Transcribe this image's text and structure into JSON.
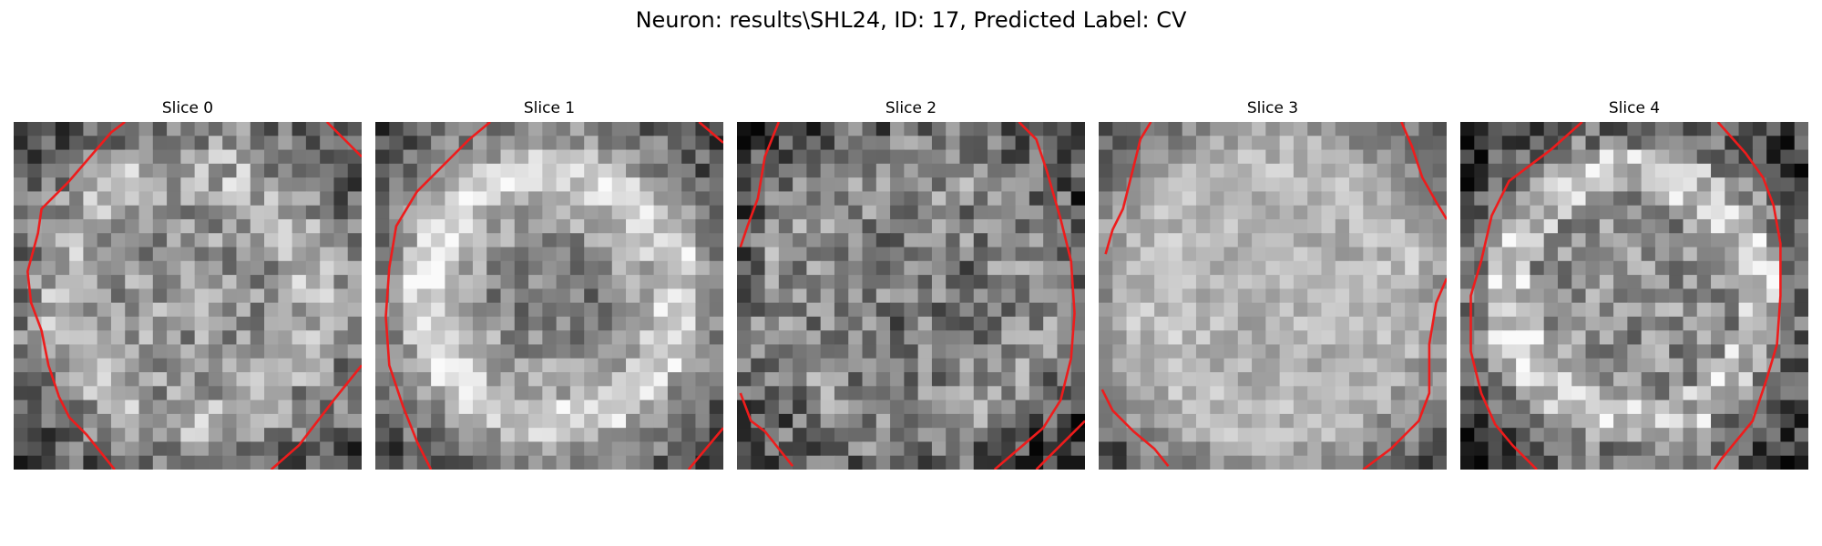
{
  "title": "Neuron: results\\SHL24, ID: 17, Predicted Label: CV",
  "slices": [
    {
      "label": "Slice 0",
      "seed": 11,
      "brightness": 0.58,
      "contrast": 0.22,
      "ring": 0.12,
      "dark_corner": 0.32,
      "center_dark": 0.0
    },
    {
      "label": "Slice 1",
      "seed": 29,
      "brightness": 0.64,
      "contrast": 0.15,
      "ring": 0.26,
      "dark_corner": 0.4,
      "center_dark": 0.18
    },
    {
      "label": "Slice 2",
      "seed": 47,
      "brightness": 0.52,
      "contrast": 0.24,
      "ring": 0.06,
      "dark_corner": 0.36,
      "center_dark": 0.06
    },
    {
      "label": "Slice 3",
      "seed": 71,
      "brightness": 0.7,
      "contrast": 0.13,
      "ring": 0.04,
      "dark_corner": 0.38,
      "center_dark": 0.0
    },
    {
      "label": "Slice 4",
      "seed": 89,
      "brightness": 0.56,
      "contrast": 0.22,
      "ring": 0.28,
      "dark_corner": 0.45,
      "center_dark": 0.0
    }
  ],
  "contours": [
    [
      [
        [
          0.32,
          0.0
        ],
        [
          0.28,
          0.03
        ],
        [
          0.16,
          0.17
        ],
        [
          0.08,
          0.25
        ],
        [
          0.07,
          0.32
        ],
        [
          0.04,
          0.43
        ],
        [
          0.05,
          0.52
        ],
        [
          0.08,
          0.6
        ],
        [
          0.1,
          0.7
        ],
        [
          0.13,
          0.79
        ],
        [
          0.16,
          0.85
        ],
        [
          0.21,
          0.9
        ],
        [
          0.29,
          1.0
        ]
      ],
      [
        [
          0.9,
          0.0
        ],
        [
          1.0,
          0.1
        ]
      ],
      [
        [
          0.74,
          1.0
        ],
        [
          0.82,
          0.93
        ],
        [
          0.92,
          0.8
        ],
        [
          1.0,
          0.7
        ]
      ]
    ],
    [
      [
        [
          0.33,
          0.0
        ],
        [
          0.27,
          0.05
        ],
        [
          0.12,
          0.2
        ],
        [
          0.06,
          0.3
        ],
        [
          0.04,
          0.42
        ],
        [
          0.03,
          0.56
        ],
        [
          0.04,
          0.7
        ],
        [
          0.08,
          0.82
        ],
        [
          0.12,
          0.92
        ],
        [
          0.16,
          1.0
        ]
      ],
      [
        [
          0.93,
          0.0
        ],
        [
          1.0,
          0.06
        ]
      ],
      [
        [
          0.9,
          1.0
        ],
        [
          1.0,
          0.88
        ]
      ]
    ],
    [
      [
        [
          0.12,
          0.0
        ],
        [
          0.08,
          0.1
        ],
        [
          0.06,
          0.22
        ],
        [
          0.03,
          0.3
        ],
        [
          0.01,
          0.36
        ]
      ],
      [
        [
          0.81,
          0.0
        ],
        [
          0.86,
          0.05
        ],
        [
          0.89,
          0.14
        ],
        [
          0.93,
          0.28
        ],
        [
          0.96,
          0.4
        ],
        [
          0.97,
          0.55
        ],
        [
          0.96,
          0.68
        ],
        [
          0.93,
          0.8
        ],
        [
          0.88,
          0.88
        ],
        [
          0.74,
          1.0
        ]
      ],
      [
        [
          0.01,
          0.78
        ],
        [
          0.04,
          0.86
        ],
        [
          0.08,
          0.89
        ],
        [
          0.16,
          0.99
        ]
      ],
      [
        [
          0.86,
          1.0
        ],
        [
          0.96,
          0.9
        ],
        [
          1.0,
          0.86
        ]
      ]
    ],
    [
      [
        [
          0.15,
          0.0
        ],
        [
          0.12,
          0.05
        ],
        [
          0.1,
          0.13
        ],
        [
          0.07,
          0.25
        ],
        [
          0.04,
          0.31
        ],
        [
          0.02,
          0.38
        ]
      ],
      [
        [
          0.87,
          0.0
        ],
        [
          0.9,
          0.07
        ],
        [
          0.93,
          0.16
        ],
        [
          0.97,
          0.23
        ],
        [
          1.0,
          0.28
        ]
      ],
      [
        [
          1.0,
          0.45
        ],
        [
          0.97,
          0.52
        ],
        [
          0.95,
          0.64
        ],
        [
          0.95,
          0.78
        ],
        [
          0.92,
          0.86
        ],
        [
          0.84,
          0.94
        ],
        [
          0.76,
          1.0
        ]
      ],
      [
        [
          0.01,
          0.77
        ],
        [
          0.04,
          0.83
        ],
        [
          0.1,
          0.89
        ],
        [
          0.16,
          0.94
        ],
        [
          0.2,
          0.99
        ]
      ]
    ],
    [
      [
        [
          0.35,
          0.0
        ],
        [
          0.26,
          0.08
        ],
        [
          0.14,
          0.17
        ],
        [
          0.09,
          0.27
        ],
        [
          0.06,
          0.4
        ],
        [
          0.03,
          0.5
        ],
        [
          0.03,
          0.66
        ],
        [
          0.06,
          0.78
        ],
        [
          0.1,
          0.87
        ],
        [
          0.15,
          0.93
        ],
        [
          0.22,
          1.0
        ]
      ],
      [
        [
          0.74,
          0.0
        ],
        [
          0.82,
          0.09
        ],
        [
          0.87,
          0.16
        ],
        [
          0.9,
          0.24
        ],
        [
          0.92,
          0.35
        ],
        [
          0.92,
          0.5
        ],
        [
          0.91,
          0.64
        ],
        [
          0.88,
          0.74
        ],
        [
          0.84,
          0.86
        ],
        [
          0.75,
          0.97
        ],
        [
          0.73,
          1.0
        ]
      ]
    ]
  ],
  "colors": {
    "contour": "#ee1c1c",
    "background": "#ffffff",
    "title": "#000000"
  }
}
